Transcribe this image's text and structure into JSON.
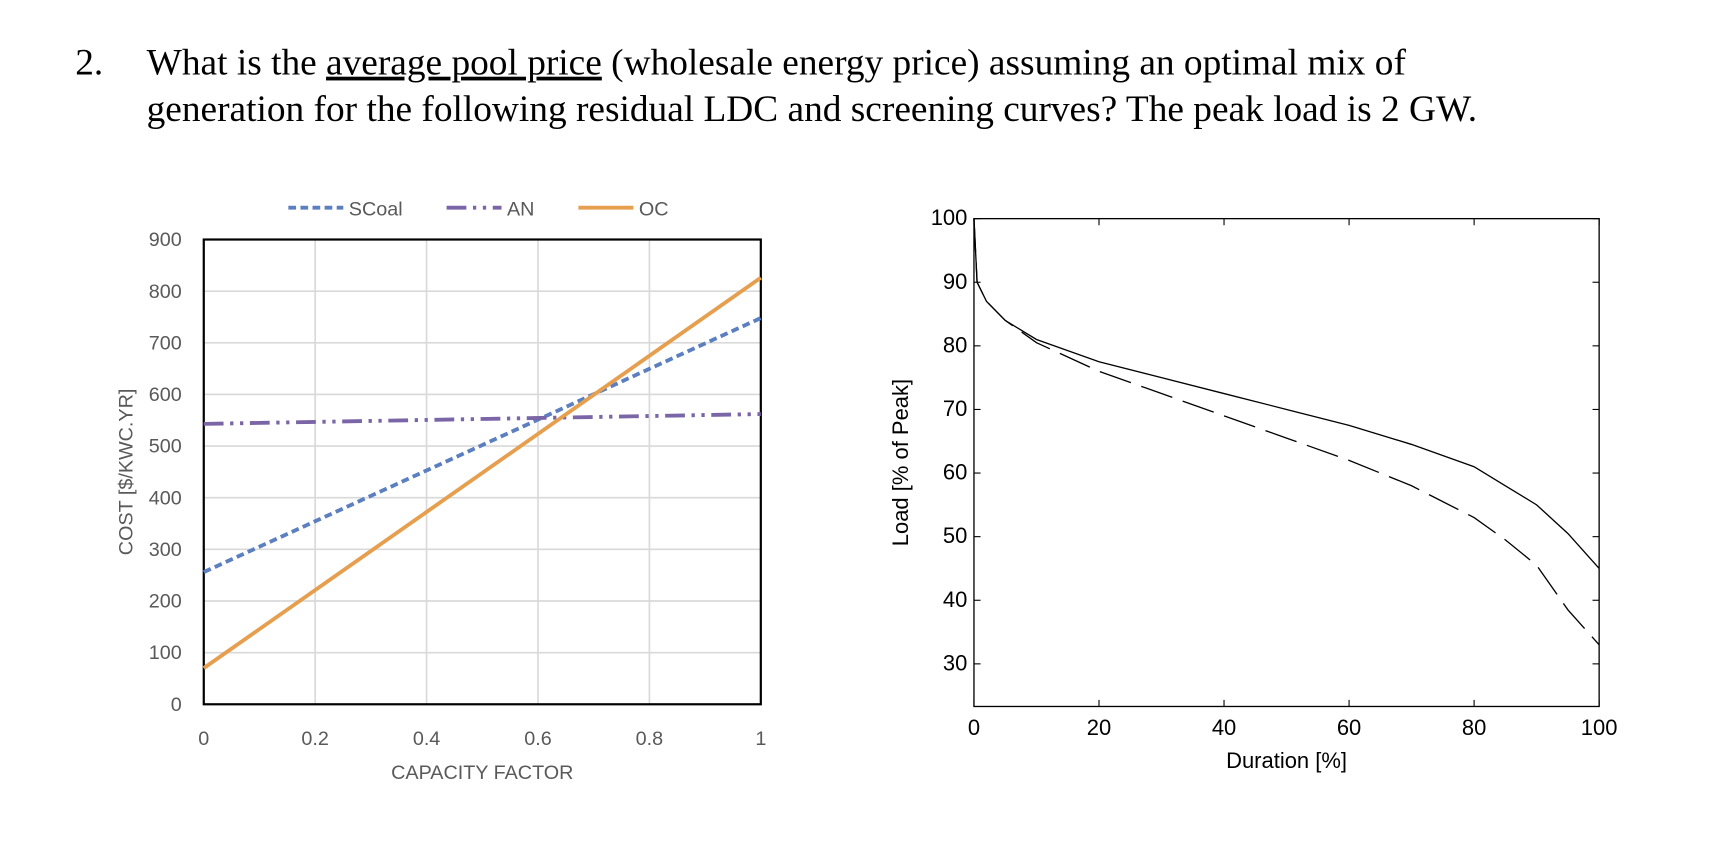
{
  "question": {
    "number": "2.",
    "line1": [
      "What is the ",
      "average pool price",
      " (wholesale energy price) assuming an optimal mix of"
    ],
    "line2": "generation for the following residual LDC and screening curves? The peak load is 2 GW."
  },
  "chart_data": [
    {
      "type": "line",
      "x_label": "CAPACITY FACTOR",
      "y_label": "COST [$/KWC.YR]",
      "x": [
        0,
        1
      ],
      "series": [
        {
          "name": "SCoal",
          "color": "#5b7fbf",
          "dash": "dashed",
          "values": [
            256,
            748
          ]
        },
        {
          "name": "AN",
          "color": "#7a65a6",
          "dash": "dashdot",
          "values": [
            543,
            562
          ]
        },
        {
          "name": "OC",
          "color": "#e59f4e",
          "dash": "solid",
          "values": [
            70,
            826
          ]
        }
      ],
      "xlim": [
        0,
        1
      ],
      "ylim": [
        0,
        900
      ],
      "xticks": [
        0,
        0.2,
        0.4,
        0.6,
        0.8,
        1
      ],
      "yticks": [
        0,
        100,
        200,
        300,
        400,
        500,
        600,
        700,
        800,
        900
      ],
      "grid": true,
      "legend": "top"
    },
    {
      "type": "line",
      "x_label": "Duration [%]",
      "y_label": "Load [% of Peak]",
      "x": [
        0,
        0.5,
        2,
        5,
        10,
        20,
        30,
        40,
        50,
        60,
        70,
        80,
        85,
        90,
        95,
        100
      ],
      "series": [
        {
          "color": "#000000",
          "dash": "solid",
          "values": [
            100,
            90,
            87,
            84,
            81,
            77.5,
            75,
            72.5,
            70,
            67.5,
            64.5,
            61,
            58,
            55,
            50.5,
            45
          ]
        },
        {
          "color": "#000000",
          "dash": "longdash",
          "values": [
            100,
            90,
            87,
            84,
            80.5,
            76,
            72.5,
            69,
            65.5,
            62,
            58,
            53,
            49.5,
            45.5,
            38.5,
            33
          ]
        }
      ],
      "xlim": [
        0,
        100
      ],
      "ylim": [
        23.3,
        100
      ],
      "xticks": [
        0,
        20,
        40,
        60,
        80,
        100
      ],
      "yticks": [
        30,
        40,
        50,
        60,
        70,
        80,
        90,
        100
      ],
      "grid": false
    }
  ]
}
